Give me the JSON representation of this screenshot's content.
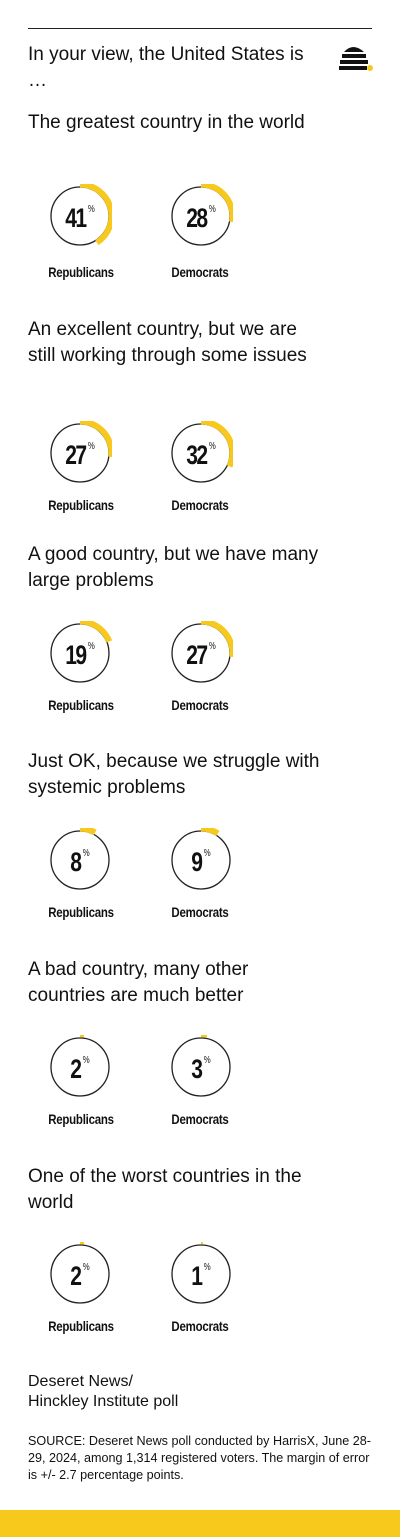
{
  "intro": "In your view, the United States is …",
  "logo_icon": "beehive-icon",
  "colors": {
    "accent": "#f7c91d",
    "ring": "#222222",
    "text": "#111111"
  },
  "percent_symbol": "%",
  "chart_data": {
    "type": "donut",
    "unit": "%",
    "groups": [
      "Republicans",
      "Democrats"
    ],
    "questions": [
      {
        "label": "The greatest country in the world",
        "values": [
          41,
          28
        ]
      },
      {
        "label": "An excellent country, but we are still working through some issues",
        "values": [
          27,
          32
        ]
      },
      {
        "label": "A good country, but we have many large problems",
        "values": [
          19,
          27
        ]
      },
      {
        "label": "Just OK, because we struggle with systemic problems",
        "values": [
          8,
          9
        ]
      },
      {
        "label": "A bad country, many other countries are much better",
        "values": [
          2,
          3
        ]
      },
      {
        "label": "One of the worst countries in the world",
        "values": [
          2,
          1
        ]
      }
    ]
  },
  "footer": {
    "title_line1": "Deseret News/",
    "title_line2": "Hinckley Institute poll",
    "source": "SOURCE: Deseret News poll conducted by HarrisX, June 28-29, 2024, among 1,314 registered voters. The margin of error is +/- 2.7 percentage points."
  }
}
